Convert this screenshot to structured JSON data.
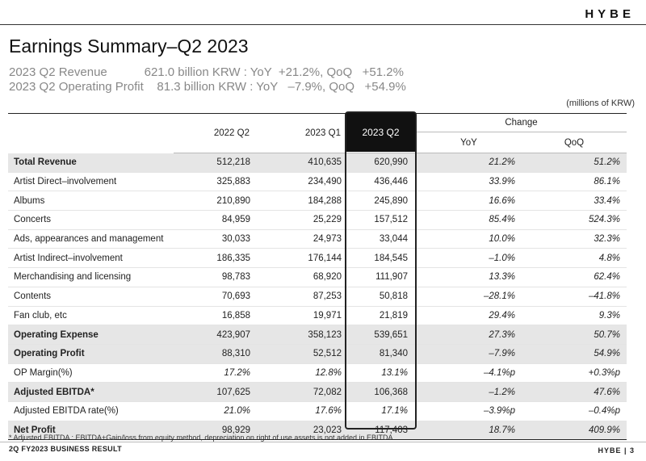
{
  "brand": {
    "logo": "HYBE"
  },
  "page": {
    "title": "Earnings Summary–Q2 2023",
    "line1": "2023 Q2 Revenue           621.0 billion KRW : YoY  +21.2%, QoQ   +51.2%",
    "line2": "2023 Q2 Operating Profit    81.3 billion KRW : YoY   –7.9%, QoQ   +54.9%",
    "unit": "(millions of KRW)"
  },
  "table": {
    "headers": {
      "c1": "2022 Q2",
      "c2": "2023 Q1",
      "c3": "2023 Q2",
      "change": "Change",
      "yoy": "YoY",
      "qoq": "QoQ"
    },
    "rows": [
      {
        "label": "Total Revenue",
        "bold": true,
        "v1": "512,218",
        "v2": "410,635",
        "v3": "620,990",
        "yoy": "21.2%",
        "qoq": "51.2%"
      },
      {
        "label": "Artist Direct–involvement",
        "bold": false,
        "v1": "325,883",
        "v2": "234,490",
        "v3": "436,446",
        "yoy": "33.9%",
        "qoq": "86.1%"
      },
      {
        "label": "Albums",
        "bold": false,
        "v1": "210,890",
        "v2": "184,288",
        "v3": "245,890",
        "yoy": "16.6%",
        "qoq": "33.4%"
      },
      {
        "label": "Concerts",
        "bold": false,
        "v1": "84,959",
        "v2": "25,229",
        "v3": "157,512",
        "yoy": "85.4%",
        "qoq": "524.3%"
      },
      {
        "label": "Ads, appearances and management",
        "bold": false,
        "v1": "30,033",
        "v2": "24,973",
        "v3": "33,044",
        "yoy": "10.0%",
        "qoq": "32.3%"
      },
      {
        "label": "Artist Indirect–involvement",
        "bold": false,
        "v1": "186,335",
        "v2": "176,144",
        "v3": "184,545",
        "yoy": "–1.0%",
        "qoq": "4.8%"
      },
      {
        "label": "Merchandising and licensing",
        "bold": false,
        "v1": "98,783",
        "v2": "68,920",
        "v3": "111,907",
        "yoy": "13.3%",
        "qoq": "62.4%"
      },
      {
        "label": "Contents",
        "bold": false,
        "v1": "70,693",
        "v2": "87,253",
        "v3": "50,818",
        "yoy": "–28.1%",
        "qoq": "–41.8%"
      },
      {
        "label": "Fan club, etc",
        "bold": false,
        "v1": "16,858",
        "v2": "19,971",
        "v3": "21,819",
        "yoy": "29.4%",
        "qoq": "9.3%"
      },
      {
        "label": "Operating Expense",
        "bold": true,
        "v1": "423,907",
        "v2": "358,123",
        "v3": "539,651",
        "yoy": "27.3%",
        "qoq": "50.7%"
      },
      {
        "label": "Operating Profit",
        "bold": true,
        "v1": "88,310",
        "v2": "52,512",
        "v3": "81,340",
        "yoy": "–7.9%",
        "qoq": "54.9%"
      },
      {
        "label": "OP Margin(%)",
        "bold": false,
        "italic": true,
        "v1": "17.2%",
        "v2": "12.8%",
        "v3": "13.1%",
        "yoy": "–4.1%p",
        "qoq": "+0.3%p"
      },
      {
        "label": "Adjusted EBITDA*",
        "bold": true,
        "v1": "107,625",
        "v2": "72,082",
        "v3": "106,368",
        "yoy": "–1.2%",
        "qoq": "47.6%"
      },
      {
        "label": "Adjusted EBITDA rate(%)",
        "bold": false,
        "italic": true,
        "v1": "21.0%",
        "v2": "17.6%",
        "v3": "17.1%",
        "yoy": "–3.9%p",
        "qoq": "–0.4%p"
      },
      {
        "label": "Net Profit",
        "bold": true,
        "v1": "98,929",
        "v2": "23,023",
        "v3": "117,403",
        "yoy": "18.7%",
        "qoq": "409.9%"
      }
    ]
  },
  "footnote": "* Adjusted EBITDA : EBITDA+Gain/loss from equity method, depreciation on right of use assets is not added in EBITDA",
  "footer": {
    "left": "2Q FY2023 BUSINESS RESULT",
    "right": "HYBE  |  3"
  }
}
